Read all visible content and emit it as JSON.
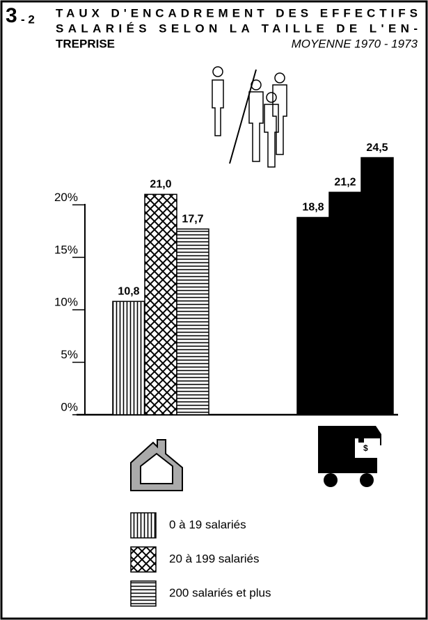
{
  "chart_data": {
    "type": "bar",
    "figure_number": "3",
    "figure_sub": "- 2",
    "title_lines": [
      "TAUX D'ENCADREMENT DES EFFECTIFS",
      "SALARIÉS SELON LA TAILLE DE L'EN-",
      "TREPRISE"
    ],
    "subtitle": "MOYENNE 1970 - 1973",
    "categories": [
      null,
      null
    ],
    "category_colors": [
      null,
      "#000000"
    ],
    "series": [
      {
        "name": "0 à 19 salariés",
        "color": "#ffffff",
        "pattern": "vertical",
        "values": [
          10.8,
          18.8
        ],
        "value_labels": [
          "10,8",
          "18,8"
        ]
      },
      {
        "name": "20 à 199 salariés",
        "color": "#ffffff",
        "pattern": "cross",
        "values": [
          21.0,
          21.2
        ],
        "value_labels": [
          "21,0",
          "21,2"
        ]
      },
      {
        "name": "200 salariés et plus",
        "color": "#ffffff",
        "pattern": "horizontal",
        "values": [
          17.7,
          24.5
        ],
        "value_labels": [
          "17,7",
          "24,5"
        ]
      }
    ],
    "ylim": [
      0,
      25
    ],
    "yticks": [
      {
        "value": 0,
        "label": "0%"
      },
      {
        "value": 5,
        "label": "5%"
      },
      {
        "value": 10,
        "label": "10%"
      },
      {
        "value": 15,
        "label": "15%"
      },
      {
        "value": 20,
        "label": "20%"
      }
    ]
  }
}
